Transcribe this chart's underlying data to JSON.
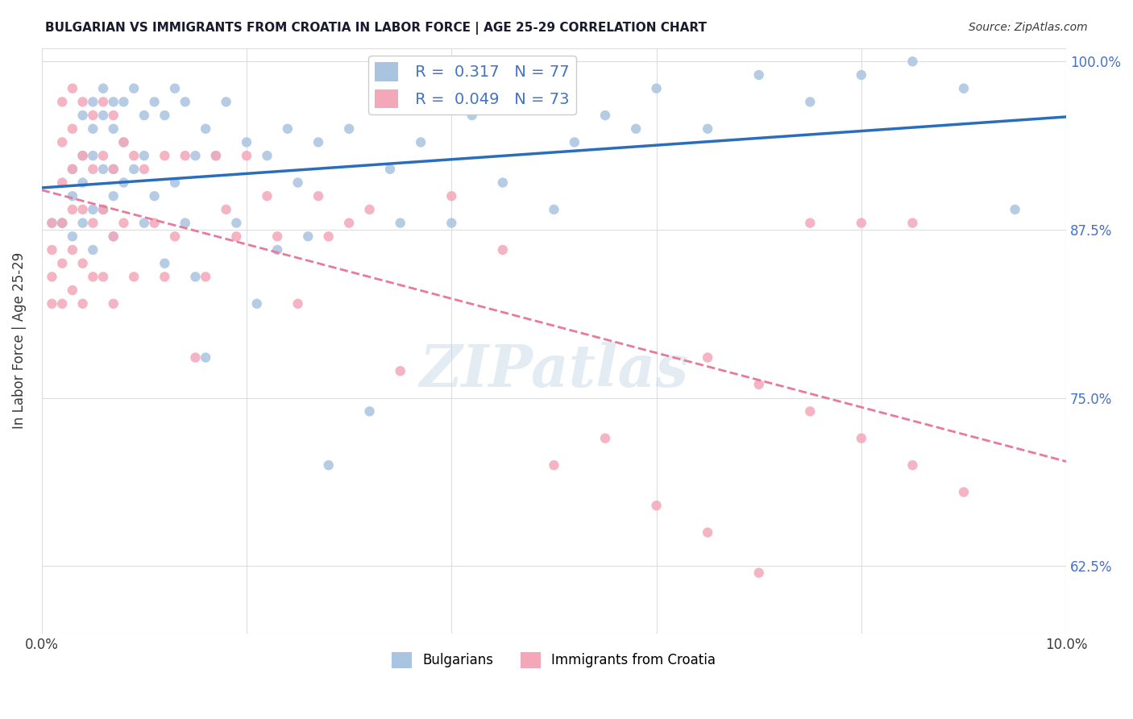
{
  "title": "BULGARIAN VS IMMIGRANTS FROM CROATIA IN LABOR FORCE | AGE 25-29 CORRELATION CHART",
  "source": "Source: ZipAtlas.com",
  "xlabel": "",
  "ylabel": "In Labor Force | Age 25-29",
  "xlim": [
    0.0,
    0.1
  ],
  "ylim": [
    0.575,
    1.01
  ],
  "yticks": [
    0.625,
    0.75,
    0.875,
    1.0
  ],
  "ytick_labels": [
    "62.5%",
    "75.0%",
    "87.5%",
    "100.0%"
  ],
  "xticks": [
    0.0,
    0.02,
    0.04,
    0.06,
    0.08,
    0.1
  ],
  "xtick_labels": [
    "0.0%",
    "",
    "",
    "",
    "",
    "10.0%"
  ],
  "bg_color": "#ffffff",
  "grid_color": "#dddddd",
  "blue_color": "#a8c4e0",
  "pink_color": "#f4a7b9",
  "blue_line_color": "#2a6ebb",
  "pink_line_color": "#e87a9a",
  "legend_R_blue": "0.317",
  "legend_N_blue": "77",
  "legend_R_pink": "0.049",
  "legend_N_pink": "73",
  "watermark": "ZIPatlas",
  "watermark_color": "#c8d8e8",
  "blue_scatter_x": [
    0.001,
    0.002,
    0.002,
    0.003,
    0.003,
    0.003,
    0.004,
    0.004,
    0.004,
    0.004,
    0.005,
    0.005,
    0.005,
    0.005,
    0.005,
    0.006,
    0.006,
    0.006,
    0.006,
    0.007,
    0.007,
    0.007,
    0.007,
    0.007,
    0.008,
    0.008,
    0.008,
    0.009,
    0.009,
    0.01,
    0.01,
    0.01,
    0.011,
    0.011,
    0.012,
    0.012,
    0.013,
    0.013,
    0.014,
    0.014,
    0.015,
    0.015,
    0.016,
    0.016,
    0.017,
    0.018,
    0.019,
    0.02,
    0.021,
    0.022,
    0.023,
    0.024,
    0.025,
    0.026,
    0.027,
    0.028,
    0.03,
    0.032,
    0.034,
    0.035,
    0.037,
    0.04,
    0.042,
    0.045,
    0.048,
    0.05,
    0.052,
    0.055,
    0.058,
    0.06,
    0.065,
    0.07,
    0.075,
    0.08,
    0.085,
    0.09,
    0.095
  ],
  "blue_scatter_y": [
    0.88,
    0.88,
    0.88,
    0.92,
    0.9,
    0.87,
    0.96,
    0.93,
    0.91,
    0.88,
    0.97,
    0.95,
    0.93,
    0.89,
    0.86,
    0.98,
    0.96,
    0.92,
    0.89,
    0.97,
    0.95,
    0.92,
    0.9,
    0.87,
    0.97,
    0.94,
    0.91,
    0.98,
    0.92,
    0.96,
    0.93,
    0.88,
    0.97,
    0.9,
    0.96,
    0.85,
    0.98,
    0.91,
    0.97,
    0.88,
    0.93,
    0.84,
    0.95,
    0.78,
    0.93,
    0.97,
    0.88,
    0.94,
    0.82,
    0.93,
    0.86,
    0.95,
    0.91,
    0.87,
    0.94,
    0.7,
    0.95,
    0.74,
    0.92,
    0.88,
    0.94,
    0.88,
    0.96,
    0.91,
    0.97,
    0.89,
    0.94,
    0.96,
    0.95,
    0.98,
    0.95,
    0.99,
    0.97,
    0.99,
    1.0,
    0.98,
    0.89
  ],
  "pink_scatter_x": [
    0.001,
    0.001,
    0.001,
    0.001,
    0.002,
    0.002,
    0.002,
    0.002,
    0.002,
    0.002,
    0.003,
    0.003,
    0.003,
    0.003,
    0.003,
    0.003,
    0.004,
    0.004,
    0.004,
    0.004,
    0.004,
    0.005,
    0.005,
    0.005,
    0.005,
    0.006,
    0.006,
    0.006,
    0.006,
    0.007,
    0.007,
    0.007,
    0.007,
    0.008,
    0.008,
    0.009,
    0.009,
    0.01,
    0.011,
    0.012,
    0.012,
    0.013,
    0.014,
    0.015,
    0.016,
    0.017,
    0.018,
    0.019,
    0.02,
    0.022,
    0.023,
    0.025,
    0.027,
    0.028,
    0.03,
    0.032,
    0.035,
    0.04,
    0.045,
    0.05,
    0.055,
    0.06,
    0.065,
    0.07,
    0.075,
    0.08,
    0.085,
    0.065,
    0.07,
    0.075,
    0.08,
    0.085,
    0.09
  ],
  "pink_scatter_y": [
    0.88,
    0.86,
    0.84,
    0.82,
    0.97,
    0.94,
    0.91,
    0.88,
    0.85,
    0.82,
    0.98,
    0.95,
    0.92,
    0.89,
    0.86,
    0.83,
    0.97,
    0.93,
    0.89,
    0.85,
    0.82,
    0.96,
    0.92,
    0.88,
    0.84,
    0.97,
    0.93,
    0.89,
    0.84,
    0.96,
    0.92,
    0.87,
    0.82,
    0.94,
    0.88,
    0.93,
    0.84,
    0.92,
    0.88,
    0.93,
    0.84,
    0.87,
    0.93,
    0.78,
    0.84,
    0.93,
    0.89,
    0.87,
    0.93,
    0.9,
    0.87,
    0.82,
    0.9,
    0.87,
    0.88,
    0.89,
    0.77,
    0.9,
    0.86,
    0.7,
    0.72,
    0.67,
    0.65,
    0.62,
    0.88,
    0.88,
    0.88,
    0.78,
    0.76,
    0.74,
    0.72,
    0.7,
    0.68
  ]
}
